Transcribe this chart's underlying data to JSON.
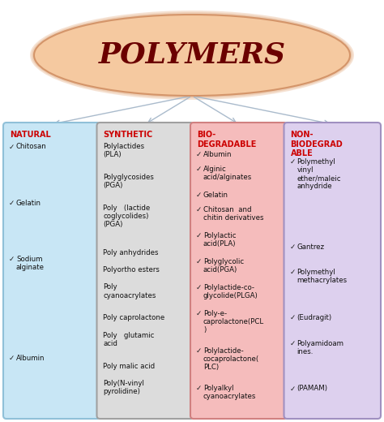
{
  "title": "POLYMERS",
  "title_color": "#6B0000",
  "title_fontsize": 26,
  "ellipse_facecolor": "#F5C9A0",
  "ellipse_edgecolor": "#D4956A",
  "background_color": "#FFFFFF",
  "columns": [
    {
      "header": "NATURAL",
      "header_color": "#CC0000",
      "box_facecolor": "#C8E6F5",
      "box_edgecolor": "#90C0D8",
      "items": [
        "Chitosan",
        "Gelatin",
        "Sodium\nalginate",
        "Albumin"
      ],
      "has_checks": true
    },
    {
      "header": "SYNTHETIC",
      "header_color": "#CC0000",
      "box_facecolor": "#DCDCDC",
      "box_edgecolor": "#A0A0A0",
      "items": [
        "Polylactides\n(PLA)",
        "Polyglycosides\n(PGA)",
        "Poly   (lactide\ncoglycolides)\n(PGA)",
        "Poly anhydrides",
        "Polyortho esters",
        "Poly\ncyanoacrylates",
        "Poly caprolactone",
        "Poly   glutamic\nacid",
        "Poly malic acid",
        "Poly(N-vinyl\npyrolidine)"
      ],
      "has_checks": false
    },
    {
      "header": "BIO-\nDEGRADABLE",
      "header_color": "#CC0000",
      "box_facecolor": "#F5BCBC",
      "box_edgecolor": "#D08080",
      "items": [
        "Albumin",
        "Alginic\nacid/alginates",
        "Gelatin",
        "Chitosan  and\nchitin derivatives",
        "Polylactic\nacid(PLA)",
        "Polyglycolic\nacid(PGA)",
        "Polylactide-co-\nglycolide(PLGA)",
        "Poly-e-\ncaprolactone(PCL\n)",
        "Polylactide-\ncocaprolactone(\nPLC)",
        "Polyalkyl\ncyanoacrylates"
      ],
      "has_checks": true
    },
    {
      "header": "NON-\nBIODEGRAD\nABLE",
      "header_color": "#CC0000",
      "box_facecolor": "#DDD0EE",
      "box_edgecolor": "#A090C0",
      "items": [
        "Polymethyl\nvinyl\nether/maleic\nanhydride",
        "Gantrez",
        "Polymethyl\nmethacrylates",
        "(Eudragit)",
        "Polyamidoam\nines.",
        "(PAMAM)"
      ],
      "has_checks": true
    }
  ],
  "arrow_color": "#AABBCC",
  "fig_width": 4.74,
  "fig_height": 5.2,
  "dpi": 100
}
